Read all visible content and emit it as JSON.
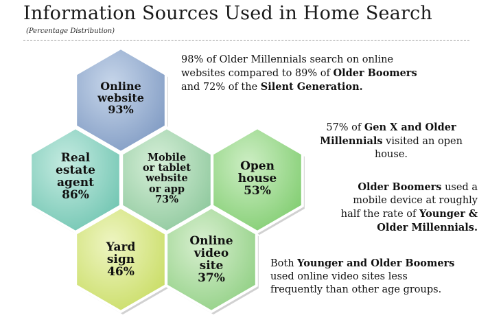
{
  "header": {
    "title": "Information Sources Used in Home Search",
    "subtitle": "(Percentage Distribution)"
  },
  "hexes": [
    {
      "key": "online_website",
      "lines": [
        "Online",
        "website",
        "93%"
      ],
      "value": 93,
      "fill_light": "#c7d6ea",
      "fill_dark": "#7e99c2",
      "stroke": "#ffffff"
    },
    {
      "key": "real_estate_agent",
      "lines": [
        "Real",
        "estate",
        "agent",
        "86%"
      ],
      "value": 86,
      "fill_light": "#c5ebe1",
      "fill_dark": "#6ec4b0",
      "stroke": "#ffffff"
    },
    {
      "key": "mobile_tablet",
      "lines": [
        "Mobile",
        "or tablet",
        "website",
        "or app",
        "73%"
      ],
      "value": 73,
      "fill_light": "#d6efd8",
      "fill_dark": "#8cc79b",
      "stroke": "#ffffff"
    },
    {
      "key": "open_house",
      "lines": [
        "Open",
        "house",
        "53%"
      ],
      "value": 53,
      "fill_light": "#cdeec4",
      "fill_dark": "#7fcc6e",
      "stroke": "#ffffff"
    },
    {
      "key": "yard_sign",
      "lines": [
        "Yard",
        "sign",
        "46%"
      ],
      "value": 46,
      "fill_light": "#eef5c2",
      "fill_dark": "#c8dc62",
      "stroke": "#ffffff"
    },
    {
      "key": "online_video",
      "lines": [
        "Online",
        "video",
        "site",
        "37%"
      ],
      "value": 37,
      "fill_light": "#d8efd0",
      "fill_dark": "#8fcf82",
      "stroke": "#ffffff"
    }
  ],
  "notes": {
    "n1": {
      "a": "98% of Older Millennials search on online",
      "b": "websites compared to 89% of ",
      "c": "Older Boomers",
      "d": "and 72% of the ",
      "e": "Silent Generation."
    },
    "n2": {
      "a": "57% of ",
      "b": "Gen X and Older",
      "c": "Millennials",
      "d": " visited an open",
      "e": "house."
    },
    "n3": {
      "a": "Older Boomers",
      "b": " used a",
      "c": "mobile device at roughly",
      "d": "half the rate of ",
      "e": "Younger &",
      "f": "Older Millennials."
    },
    "n4": {
      "a": "Both ",
      "b": "Younger and Older Boomers",
      "c": "used online video sites less",
      "d": "frequently than other age groups."
    }
  }
}
